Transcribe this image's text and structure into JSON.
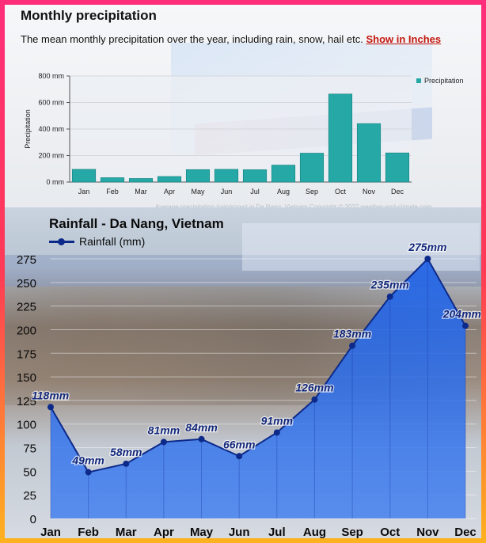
{
  "top_panel": {
    "title": "Monthly precipitation",
    "subtitle": "The mean monthly precipitation over the year, including rain, snow, hail etc.",
    "link": "Show in Inches",
    "credit": "Average precipitation (rain/snow) in Da Nang, Vietnam   Copyright © 2022  weather-and-climate.com"
  },
  "bottom_panel": {
    "title": "Rainfall - Da Nang, Vietnam",
    "legend": "Rainfall (mm)"
  },
  "colors": {
    "bar": "#26a8a6",
    "line": "#0d2a8a",
    "area": "#1f62e6",
    "link": "#c4170d"
  },
  "chart_data": [
    {
      "type": "bar",
      "categories": [
        "Jan",
        "Feb",
        "Mar",
        "Apr",
        "May",
        "Jun",
        "Jul",
        "Aug",
        "Sep",
        "Oct",
        "Nov",
        "Dec"
      ],
      "series": [
        {
          "name": "Precipitation",
          "values": [
            96,
            33,
            27,
            42,
            94,
            96,
            93,
            128,
            218,
            664,
            441,
            220
          ]
        }
      ],
      "ylabel": "Precipitation",
      "ylim": [
        0,
        800
      ],
      "ytick_labels": [
        "0 mm",
        "200 mm",
        "400 mm",
        "600 mm",
        "800 mm"
      ],
      "yticks": [
        0,
        200,
        400,
        600,
        800
      ],
      "grid": true,
      "legend_position": "top-right"
    },
    {
      "type": "area",
      "categories": [
        "Jan",
        "Feb",
        "Mar",
        "Apr",
        "May",
        "Jun",
        "Jul",
        "Aug",
        "Sep",
        "Oct",
        "Nov",
        "Dec"
      ],
      "series": [
        {
          "name": "Rainfall (mm)",
          "values": [
            118,
            49,
            58,
            81,
            84,
            66,
            91,
            126,
            183,
            235,
            275,
            204
          ],
          "labels": [
            "118mm",
            "49mm",
            "58mm",
            "81mm",
            "84mm",
            "66mm",
            "91mm",
            "126mm",
            "183mm",
            "235mm",
            "275mm",
            "204mm"
          ]
        }
      ],
      "ylim": [
        0,
        275
      ],
      "yticks": [
        0,
        25,
        50,
        75,
        100,
        125,
        150,
        175,
        200,
        225,
        250,
        275
      ],
      "grid": true,
      "legend_position": "top-left"
    }
  ]
}
